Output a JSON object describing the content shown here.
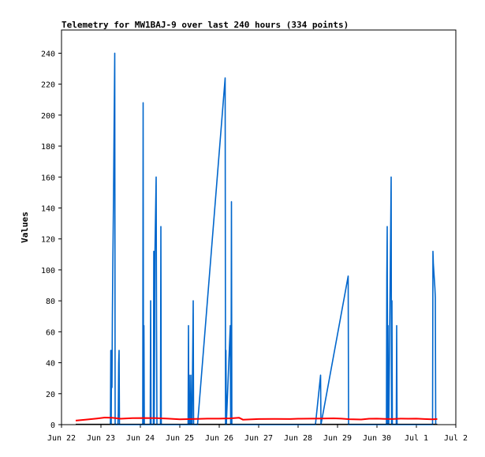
{
  "chart_data": {
    "type": "line",
    "title": "Telemetry for MW1BAJ-9 over last 240 hours (334 points)",
    "xlabel": "",
    "ylabel": "Values",
    "ylim": [
      0,
      255
    ],
    "yticks": [
      0,
      20,
      40,
      60,
      80,
      100,
      120,
      140,
      160,
      180,
      200,
      220,
      240
    ],
    "x_unit": "days since Jun 22 00:00",
    "xlim": [
      0,
      10
    ],
    "xticks": [
      {
        "x": 0,
        "label": "Jun 22"
      },
      {
        "x": 1,
        "label": "Jun 23"
      },
      {
        "x": 2,
        "label": "Jun 24"
      },
      {
        "x": 3,
        "label": "Jun 25"
      },
      {
        "x": 4,
        "label": "Jun 26"
      },
      {
        "x": 5,
        "label": "Jun 27"
      },
      {
        "x": 6,
        "label": "Jun 28"
      },
      {
        "x": 7,
        "label": "Jun 29"
      },
      {
        "x": 8,
        "label": "Jun 30"
      },
      {
        "x": 9,
        "label": "Jul 1"
      },
      {
        "x": 10,
        "label": "Jul 2"
      }
    ],
    "grid": false,
    "series": [
      {
        "name": "",
        "color": "#0066cc",
        "points": [
          [
            1.24,
            0
          ],
          [
            1.25,
            48
          ],
          [
            1.26,
            0
          ],
          [
            1.27,
            48
          ],
          [
            1.28,
            24
          ],
          [
            1.29,
            70
          ],
          [
            1.3,
            100
          ],
          [
            1.31,
            125
          ],
          [
            1.32,
            150
          ],
          [
            1.33,
            182
          ],
          [
            1.34,
            210
          ],
          [
            1.35,
            240
          ],
          [
            1.36,
            0
          ],
          [
            1.43,
            0
          ],
          [
            1.44,
            8
          ],
          [
            1.45,
            40
          ],
          [
            1.46,
            48
          ],
          [
            1.47,
            0
          ],
          [
            2.06,
            0
          ],
          [
            2.07,
            208
          ],
          [
            2.08,
            0
          ],
          [
            2.09,
            64
          ],
          [
            2.1,
            0
          ],
          [
            2.25,
            0
          ],
          [
            2.26,
            80
          ],
          [
            2.27,
            0
          ],
          [
            2.33,
            0
          ],
          [
            2.34,
            112
          ],
          [
            2.35,
            0
          ],
          [
            2.36,
            48
          ],
          [
            2.37,
            112
          ],
          [
            2.38,
            128
          ],
          [
            2.39,
            144
          ],
          [
            2.4,
            160
          ],
          [
            2.41,
            64
          ],
          [
            2.42,
            0
          ],
          [
            2.51,
            0
          ],
          [
            2.52,
            128
          ],
          [
            2.53,
            0
          ],
          [
            3.21,
            0
          ],
          [
            3.22,
            64
          ],
          [
            3.23,
            0
          ],
          [
            3.24,
            32
          ],
          [
            3.25,
            0
          ],
          [
            3.26,
            16
          ],
          [
            3.27,
            0
          ],
          [
            3.28,
            32
          ],
          [
            3.29,
            0
          ],
          [
            3.3,
            16
          ],
          [
            3.31,
            0
          ],
          [
            3.34,
            80
          ],
          [
            3.35,
            0
          ],
          [
            3.45,
            0
          ],
          [
            4.15,
            224
          ],
          [
            4.16,
            0
          ],
          [
            4.17,
            48
          ],
          [
            4.18,
            0
          ],
          [
            4.28,
            64
          ],
          [
            4.29,
            0
          ],
          [
            4.3,
            24
          ],
          [
            4.31,
            144
          ],
          [
            4.32,
            0
          ],
          [
            6.44,
            0
          ],
          [
            6.57,
            32
          ],
          [
            6.58,
            0
          ],
          [
            7.27,
            96
          ],
          [
            7.28,
            0
          ],
          [
            8.24,
            0
          ],
          [
            8.25,
            96
          ],
          [
            8.26,
            128
          ],
          [
            8.27,
            0
          ],
          [
            8.28,
            64
          ],
          [
            8.29,
            0
          ],
          [
            8.3,
            0
          ],
          [
            8.36,
            160
          ],
          [
            8.37,
            0
          ],
          [
            8.38,
            80
          ],
          [
            8.39,
            0
          ],
          [
            8.49,
            0
          ],
          [
            8.5,
            64
          ],
          [
            8.51,
            0
          ],
          [
            9.41,
            0
          ],
          [
            9.42,
            112
          ],
          [
            9.43,
            104
          ],
          [
            9.45,
            96
          ],
          [
            9.47,
            88
          ],
          [
            9.48,
            82
          ],
          [
            9.49,
            0
          ]
        ]
      },
      {
        "name": "",
        "color": "#ff0000",
        "points": [
          [
            0.36,
            2.6
          ],
          [
            0.6,
            3.2
          ],
          [
            0.9,
            4.0
          ],
          [
            1.1,
            4.6
          ],
          [
            1.3,
            4.4
          ],
          [
            1.5,
            3.8
          ],
          [
            1.8,
            4.2
          ],
          [
            2.1,
            4.3
          ],
          [
            2.4,
            4.2
          ],
          [
            2.7,
            3.9
          ],
          [
            3.0,
            3.4
          ],
          [
            3.3,
            3.6
          ],
          [
            3.7,
            3.9
          ],
          [
            4.0,
            3.9
          ],
          [
            4.3,
            4.1
          ],
          [
            4.5,
            4.5
          ],
          [
            4.6,
            3.2
          ],
          [
            5.0,
            3.6
          ],
          [
            5.4,
            3.7
          ],
          [
            5.8,
            3.6
          ],
          [
            6.0,
            3.8
          ],
          [
            6.3,
            3.9
          ],
          [
            6.6,
            4.0
          ],
          [
            6.9,
            4.1
          ],
          [
            7.1,
            3.9
          ],
          [
            7.3,
            3.5
          ],
          [
            7.6,
            3.3
          ],
          [
            7.8,
            3.8
          ],
          [
            8.0,
            3.9
          ],
          [
            8.2,
            3.7
          ],
          [
            8.4,
            3.6
          ],
          [
            8.6,
            3.9
          ],
          [
            8.8,
            3.8
          ],
          [
            9.0,
            3.9
          ],
          [
            9.2,
            3.6
          ],
          [
            9.4,
            3.4
          ],
          [
            9.53,
            3.6
          ]
        ]
      },
      {
        "name": "",
        "color": "#000000",
        "points": [
          [
            0.36,
            0.3
          ],
          [
            9.53,
            0.3
          ]
        ]
      }
    ]
  }
}
